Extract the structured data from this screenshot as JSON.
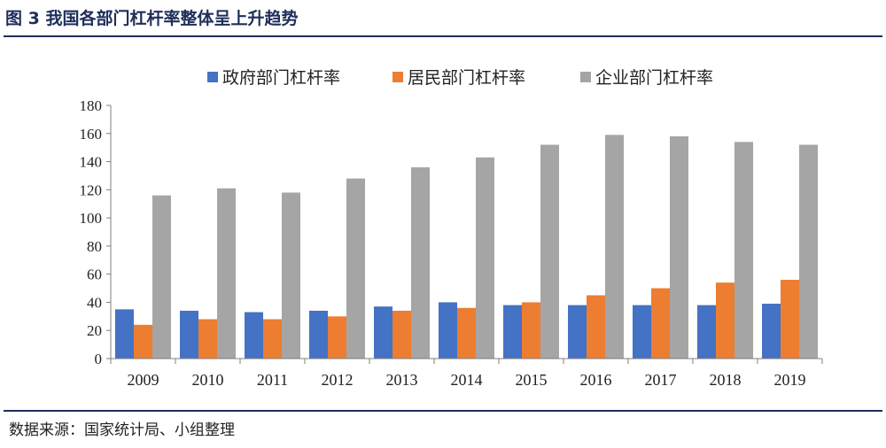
{
  "header": {
    "title": "图 3 我国各部门杠杆率整体呈上升趋势"
  },
  "footer": {
    "source": "数据来源：国家统计局、小组整理"
  },
  "chart_data": {
    "type": "bar",
    "categories": [
      "2009",
      "2010",
      "2011",
      "2012",
      "2013",
      "2014",
      "2015",
      "2016",
      "2017",
      "2018",
      "2019"
    ],
    "series": [
      {
        "name": "政府部门杠杆率",
        "color": "#4472c4",
        "values": [
          35,
          34,
          33,
          34,
          37,
          40,
          38,
          38,
          38,
          38,
          39
        ]
      },
      {
        "name": "居民部门杠杆率",
        "color": "#ed7d31",
        "values": [
          24,
          28,
          28,
          30,
          34,
          36,
          40,
          45,
          50,
          54,
          56
        ]
      },
      {
        "name": "企业部门杠杆率",
        "color": "#a5a5a5",
        "values": [
          116,
          121,
          118,
          128,
          136,
          143,
          152,
          159,
          158,
          154,
          152
        ]
      }
    ],
    "yticks": [
      0,
      20,
      40,
      60,
      80,
      100,
      120,
      140,
      160,
      180
    ],
    "ylim": [
      0,
      180
    ],
    "legend_position": "top-center",
    "grid": false
  }
}
